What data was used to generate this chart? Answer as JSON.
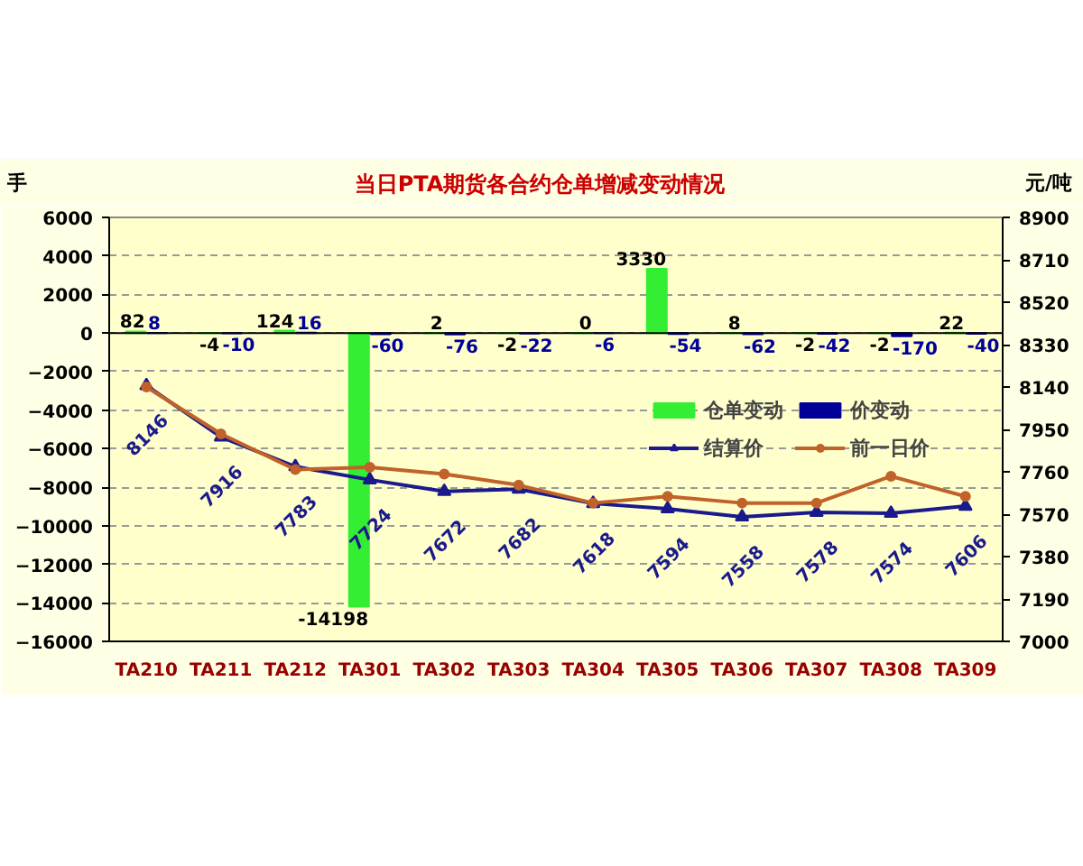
{
  "chart_data": {
    "type": "bar",
    "title": "当日PTA期货各合约仓单增减变动情况",
    "ylabel": "手",
    "y2label": "元/吨",
    "categories": [
      "TA210",
      "TA211",
      "TA212",
      "TA301",
      "TA302",
      "TA303",
      "TA304",
      "TA305",
      "TA306",
      "TA307",
      "TA308",
      "TA309"
    ],
    "series": [
      {
        "name": "仓单变动",
        "color": "#33ee33",
        "values": [
          82,
          -4,
          124,
          -14198,
          2,
          -2,
          0,
          3330,
          8,
          -2,
          -2,
          22
        ],
        "value_labels": [
          "82",
          "-4",
          "124",
          "-14198",
          "2",
          "-2",
          "0",
          "3330",
          "8",
          "-2",
          "-2",
          "22"
        ]
      },
      {
        "name": "价变动",
        "color": "#000099",
        "values": [
          8,
          -10,
          16,
          -60,
          -76,
          -22,
          -6,
          -54,
          -62,
          -42,
          -170,
          -40
        ],
        "value_labels": [
          "8",
          "-10",
          "16",
          "-60",
          "-76",
          "-22",
          "-6",
          "-54",
          "-62",
          "-42",
          "-170",
          "-40"
        ]
      },
      {
        "name": "结算价",
        "type": "line",
        "axis": "y2",
        "color": "#1a1a8c",
        "marker": "triangle",
        "line_style": "solid",
        "values": [
          8146,
          7916,
          7783,
          7724,
          7672,
          7682,
          7618,
          7594,
          7558,
          7578,
          7574,
          7606
        ],
        "value_labels": [
          "8146",
          "7916",
          "7783",
          "7724",
          "7672",
          "7682",
          "7618",
          "7594",
          "7558",
          "7578",
          "7574",
          "7606"
        ]
      },
      {
        "name": "前一日价",
        "type": "line",
        "axis": "y2",
        "color": "#c0622a",
        "marker": "circle",
        "line_style": "solid",
        "values": [
          8140,
          7930,
          7770,
          7780,
          7750,
          7700,
          7620,
          7650,
          7620,
          7620,
          7740,
          7650
        ]
      }
    ],
    "ylim": [
      -16000,
      6000
    ],
    "yticks": [
      -16000,
      -14000,
      -12000,
      -10000,
      -8000,
      -6000,
      -4000,
      -2000,
      0,
      2000,
      4000,
      6000
    ],
    "y2lim": [
      7000,
      8900
    ],
    "y2ticks": [
      7000,
      7190,
      7380,
      7570,
      7760,
      7950,
      8140,
      8330,
      8520,
      8710,
      8900
    ],
    "grid": "y",
    "legend": "right"
  }
}
